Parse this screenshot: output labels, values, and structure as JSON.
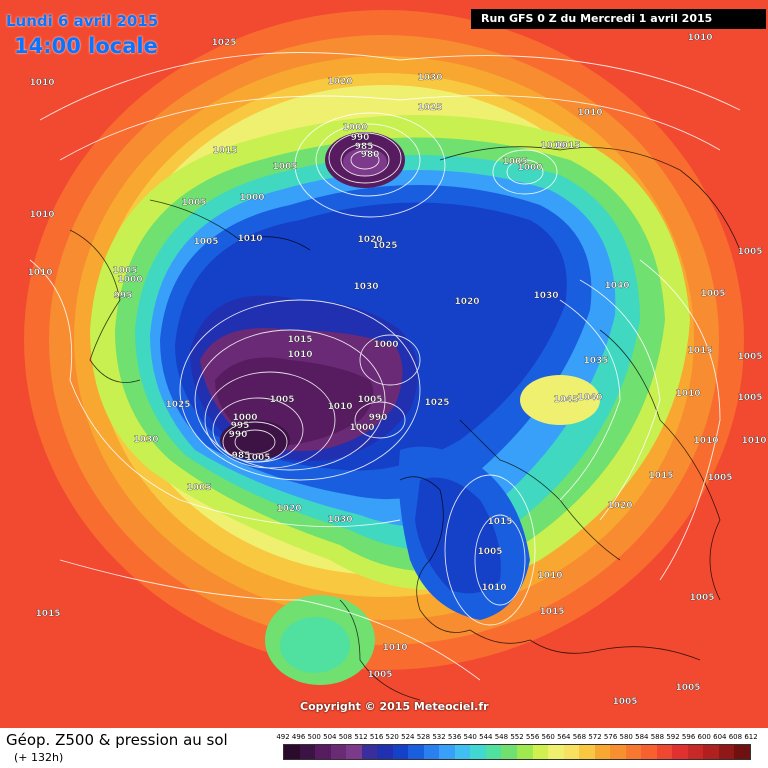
{
  "header": {
    "date": "Lundi 6 avril 2015",
    "time": "14:00 locale",
    "run": "Run GFS 0 Z du Mercredi 1 avril 2015"
  },
  "copyright": "Copyright © 2015 Meteociel.fr",
  "footer": {
    "title": "Géop. Z500 & pression au sol",
    "lead_time": "(+ 132h)"
  },
  "legend": {
    "values": [
      "492",
      "496",
      "500",
      "504",
      "508",
      "512",
      "516",
      "520",
      "524",
      "528",
      "532",
      "536",
      "540",
      "544",
      "548",
      "552",
      "556",
      "560",
      "564",
      "568",
      "572",
      "576",
      "580",
      "584",
      "588",
      "592",
      "596",
      "600",
      "604",
      "608",
      "612"
    ],
    "colors": [
      "#2b0a2e",
      "#3d1245",
      "#561c5f",
      "#6a2a75",
      "#7d3a8a",
      "#3a2d9c",
      "#2030b0",
      "#1540c8",
      "#1a5ee0",
      "#2a80f0",
      "#38a0f8",
      "#40c0f0",
      "#40d8d0",
      "#50e0a0",
      "#70e070",
      "#a0e850",
      "#d0f050",
      "#f0f070",
      "#f8e060",
      "#f8c840",
      "#f8a830",
      "#f89030",
      "#f87830",
      "#f86030",
      "#f04830",
      "#e03030",
      "#c82828",
      "#b02020",
      "#901818",
      "#701010"
    ]
  },
  "isobars": [
    {
      "label": "1025",
      "lx": 224,
      "ly": 45
    },
    {
      "label": "1010",
      "lx": 42,
      "ly": 85
    },
    {
      "label": "1020",
      "lx": 340,
      "ly": 84
    },
    {
      "label": "1030",
      "lx": 430,
      "ly": 80
    },
    {
      "label": "1025",
      "lx": 430,
      "ly": 110
    },
    {
      "label": "1010",
      "lx": 700,
      "ly": 40
    },
    {
      "label": "1010",
      "lx": 590,
      "ly": 115
    },
    {
      "label": "1015",
      "lx": 225,
      "ly": 153
    },
    {
      "label": "1000",
      "lx": 355,
      "ly": 130
    },
    {
      "label": "990",
      "lx": 360,
      "ly": 140
    },
    {
      "label": "985",
      "lx": 364,
      "ly": 149
    },
    {
      "label": "980",
      "lx": 370,
      "ly": 157
    },
    {
      "label": "1005",
      "lx": 285,
      "ly": 169
    },
    {
      "label": "1005",
      "lx": 515,
      "ly": 164
    },
    {
      "label": "1010",
      "lx": 553,
      "ly": 148
    },
    {
      "label": "1015",
      "lx": 568,
      "ly": 148
    },
    {
      "label": "1000",
      "lx": 530,
      "ly": 170
    },
    {
      "label": "1005",
      "lx": 194,
      "ly": 205
    },
    {
      "label": "1000",
      "lx": 252,
      "ly": 200
    },
    {
      "label": "1010",
      "lx": 42,
      "ly": 217
    },
    {
      "label": "1005",
      "lx": 206,
      "ly": 244
    },
    {
      "label": "1010",
      "lx": 250,
      "ly": 241
    },
    {
      "label": "1020",
      "lx": 370,
      "ly": 242
    },
    {
      "label": "1025",
      "lx": 385,
      "ly": 248
    },
    {
      "label": "1005",
      "lx": 750,
      "ly": 254
    },
    {
      "label": "1010",
      "lx": 40,
      "ly": 275
    },
    {
      "label": "1005",
      "lx": 125,
      "ly": 273
    },
    {
      "label": "1000",
      "lx": 130,
      "ly": 282
    },
    {
      "label": "995",
      "lx": 123,
      "ly": 298
    },
    {
      "label": "1030",
      "lx": 366,
      "ly": 289
    },
    {
      "label": "1020",
      "lx": 467,
      "ly": 304
    },
    {
      "label": "1030",
      "lx": 546,
      "ly": 298
    },
    {
      "label": "1040",
      "lx": 617,
      "ly": 288
    },
    {
      "label": "1005",
      "lx": 713,
      "ly": 296
    },
    {
      "label": "1015",
      "lx": 300,
      "ly": 342
    },
    {
      "label": "1010",
      "lx": 300,
      "ly": 357
    },
    {
      "label": "1000",
      "lx": 386,
      "ly": 347
    },
    {
      "label": "1015",
      "lx": 700,
      "ly": 353
    },
    {
      "label": "1035",
      "lx": 596,
      "ly": 363
    },
    {
      "label": "1005",
      "lx": 750,
      "ly": 359
    },
    {
      "label": "1025",
      "lx": 178,
      "ly": 407
    },
    {
      "label": "1005",
      "lx": 282,
      "ly": 402
    },
    {
      "label": "1010",
      "lx": 340,
      "ly": 409
    },
    {
      "label": "1005",
      "lx": 370,
      "ly": 402
    },
    {
      "label": "1025",
      "lx": 437,
      "ly": 405
    },
    {
      "label": "1045",
      "lx": 566,
      "ly": 402
    },
    {
      "label": "1040",
      "lx": 590,
      "ly": 400
    },
    {
      "label": "1010",
      "lx": 688,
      "ly": 396
    },
    {
      "label": "1005",
      "lx": 750,
      "ly": 400
    },
    {
      "label": "1000",
      "lx": 245,
      "ly": 420
    },
    {
      "label": "995",
      "lx": 240,
      "ly": 428
    },
    {
      "label": "990",
      "lx": 238,
      "ly": 437
    },
    {
      "label": "990",
      "lx": 378,
      "ly": 420
    },
    {
      "label": "1000",
      "lx": 362,
      "ly": 430
    },
    {
      "label": "1030",
      "lx": 146,
      "ly": 442
    },
    {
      "label": "985",
      "lx": 241,
      "ly": 458
    },
    {
      "label": "1005",
      "lx": 258,
      "ly": 460
    },
    {
      "label": "1010",
      "lx": 706,
      "ly": 443
    },
    {
      "label": "1010",
      "lx": 754,
      "ly": 443
    },
    {
      "label": "1005",
      "lx": 199,
      "ly": 490
    },
    {
      "label": "1015",
      "lx": 661,
      "ly": 478
    },
    {
      "label": "1005",
      "lx": 720,
      "ly": 480
    },
    {
      "label": "1020",
      "lx": 289,
      "ly": 511
    },
    {
      "label": "1030",
      "lx": 340,
      "ly": 522
    },
    {
      "label": "1020",
      "lx": 620,
      "ly": 508
    },
    {
      "label": "1015",
      "lx": 500,
      "ly": 524
    },
    {
      "label": "1005",
      "lx": 490,
      "ly": 554
    },
    {
      "label": "1010",
      "lx": 550,
      "ly": 578
    },
    {
      "label": "1010",
      "lx": 494,
      "ly": 590
    },
    {
      "label": "1015",
      "lx": 48,
      "ly": 616
    },
    {
      "label": "1015",
      "lx": 552,
      "ly": 614
    },
    {
      "label": "1005",
      "lx": 702,
      "ly": 600
    },
    {
      "label": "1010",
      "lx": 395,
      "ly": 650
    },
    {
      "label": "1005",
      "lx": 380,
      "ly": 677
    },
    {
      "label": "1005",
      "lx": 688,
      "ly": 690
    },
    {
      "label": "1005",
      "lx": 625,
      "ly": 704
    }
  ]
}
